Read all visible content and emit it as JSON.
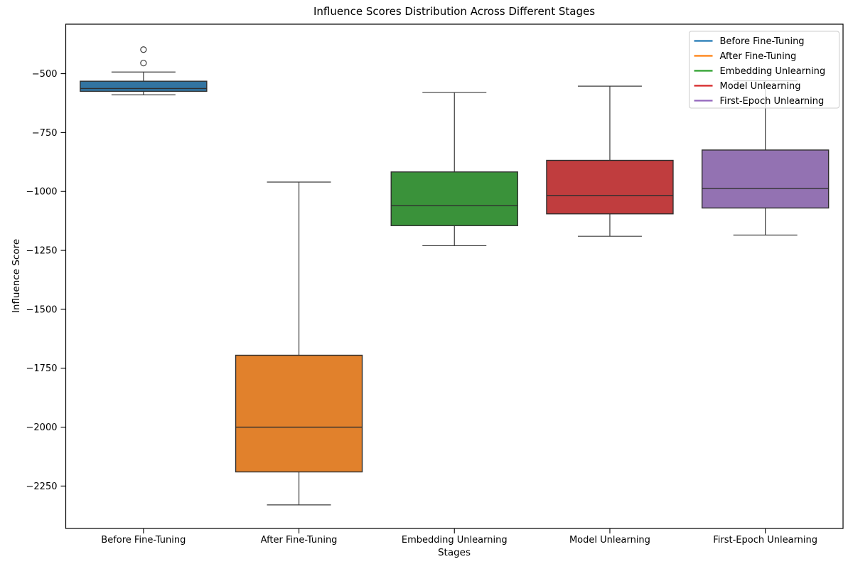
{
  "figure": {
    "title": "Influence Scores Distribution Across Different Stages",
    "xlabel": "Stages",
    "ylabel": "Influence Score"
  },
  "chart_data": {
    "type": "box",
    "title": "Influence Scores Distribution Across Different Stages",
    "xlabel": "Stages",
    "ylabel": "Influence Score",
    "ylim": [
      -2430,
      -290
    ],
    "grid": false,
    "yticks": [
      {
        "v": -500,
        "label": "−500"
      },
      {
        "v": -750,
        "label": "−750"
      },
      {
        "v": -1000,
        "label": "−1000"
      },
      {
        "v": -1250,
        "label": "−1250"
      },
      {
        "v": -1500,
        "label": "−1500"
      },
      {
        "v": -1750,
        "label": "−1750"
      },
      {
        "v": -2000,
        "label": "−2000"
      },
      {
        "v": -2250,
        "label": "−2250"
      }
    ],
    "categories": [
      "Before Fine-Tuning",
      "After Fine-Tuning",
      "Embedding Unlearning",
      "Model Unlearning",
      "First-Epoch Unlearning"
    ],
    "boxes": [
      {
        "label": "Before Fine-Tuning",
        "fill": "#3274a1",
        "whislo": -590,
        "q1": -575,
        "med": -563,
        "q3": -532,
        "whishi": -493,
        "outliers": [
          -455,
          -398
        ]
      },
      {
        "label": "After Fine-Tuning",
        "fill": "#e1812c",
        "whislo": -2330,
        "q1": -2190,
        "med": -2000,
        "q3": -1695,
        "whishi": -960,
        "outliers": []
      },
      {
        "label": "Embedding Unlearning",
        "fill": "#3a923a",
        "whislo": -1230,
        "q1": -1145,
        "med": -1060,
        "q3": -917,
        "whishi": -580,
        "outliers": []
      },
      {
        "label": "Model Unlearning",
        "fill": "#c03d3e",
        "whislo": -1190,
        "q1": -1095,
        "med": -1017,
        "q3": -868,
        "whishi": -553,
        "outliers": []
      },
      {
        "label": "First-Epoch Unlearning",
        "fill": "#9372b2",
        "whislo": -1185,
        "q1": -1070,
        "med": -987,
        "q3": -824,
        "whishi": -530,
        "outliers": []
      }
    ],
    "legend": {
      "position": "upper right",
      "entries": [
        {
          "label": "Before Fine-Tuning",
          "color": "#1f77b4"
        },
        {
          "label": "After Fine-Tuning",
          "color": "#ff7f0e"
        },
        {
          "label": "Embedding Unlearning",
          "color": "#2ca02c"
        },
        {
          "label": "Model Unlearning",
          "color": "#d62728"
        },
        {
          "label": "First-Epoch Unlearning",
          "color": "#9467bd"
        }
      ]
    },
    "colors": {
      "box_edge": "#2f2f2f",
      "whisker": "#3c3c3c",
      "spine": "#000000",
      "legend_frame": "#cccccc",
      "legend_bg": "#ffffff"
    }
  }
}
